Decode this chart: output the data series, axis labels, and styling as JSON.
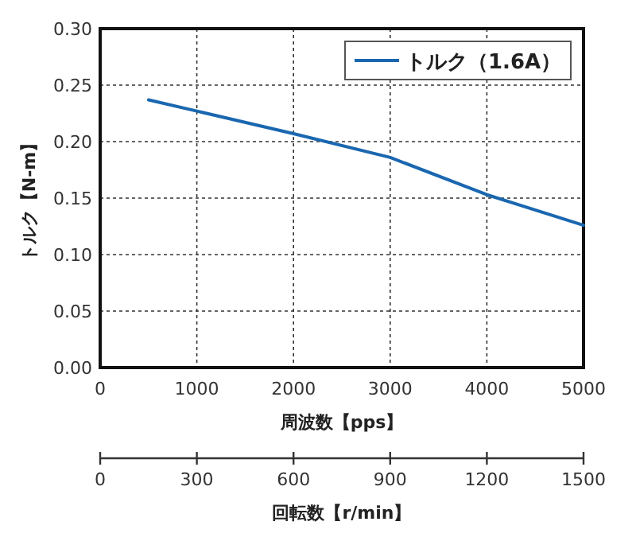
{
  "chart_data": {
    "type": "line",
    "xlabel": "周波数【pps】",
    "ylabel": "トルク【N-m】",
    "x2label": "回転数【r/min】",
    "x": [
      500,
      1000,
      2000,
      3000,
      4000,
      5000
    ],
    "series": [
      {
        "name": "トルク（1.6A）",
        "color": "#1a67b0",
        "values": [
          0.237,
          0.227,
          0.207,
          0.186,
          0.153,
          0.126
        ]
      }
    ],
    "xlim": [
      0,
      5000
    ],
    "xticks": [
      0,
      1000,
      2000,
      3000,
      4000,
      5000
    ],
    "ylim": [
      0,
      0.3
    ],
    "yticks": [
      {
        "value": 0,
        "label": "0.00"
      },
      {
        "value": 0.05,
        "label": "0.05"
      },
      {
        "value": 0.1,
        "label": "0.10"
      },
      {
        "value": 0.15,
        "label": "0.15"
      },
      {
        "value": 0.2,
        "label": "0.20"
      },
      {
        "value": 0.25,
        "label": "0.25"
      },
      {
        "value": 0.3,
        "label": "0.30"
      }
    ],
    "x2lim": [
      0,
      1500
    ],
    "x2ticks": [
      0,
      300,
      600,
      900,
      1200,
      1500
    ],
    "grid": true,
    "legend": "top right",
    "marker": "none",
    "line_style": "solid"
  }
}
